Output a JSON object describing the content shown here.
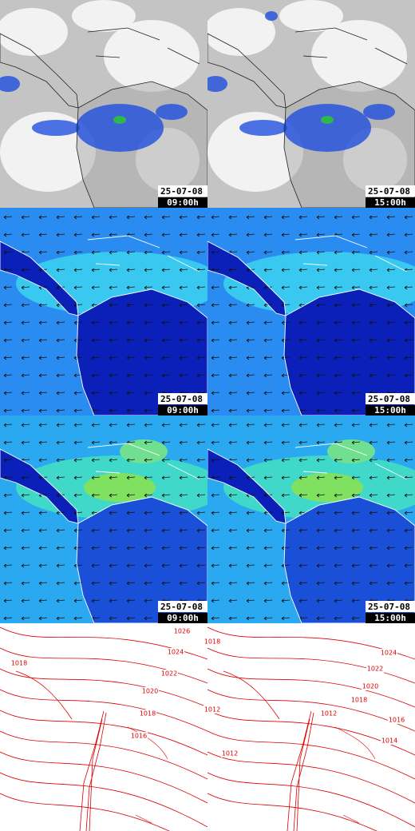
{
  "panels": [
    {
      "date": "25-07-08",
      "time": "09:00h"
    },
    {
      "date": "25-07-08",
      "time": "15:00h"
    },
    {
      "date": "25-07-08",
      "time": "09:00h"
    },
    {
      "date": "25-07-08",
      "time": "15:00h"
    },
    {
      "date": "25-07-08",
      "time": "09:00h"
    },
    {
      "date": "25-07-08",
      "time": "15:00h"
    }
  ],
  "isobar_panels": [
    {
      "labels": [
        "1026",
        "1024",
        "1018",
        "1022",
        "1020",
        "1018",
        "1016"
      ]
    },
    {
      "labels": [
        "1018",
        "1024",
        "1022",
        "1020",
        "1018",
        "1016",
        "1014",
        "1012",
        "1012",
        "1012"
      ]
    }
  ]
}
